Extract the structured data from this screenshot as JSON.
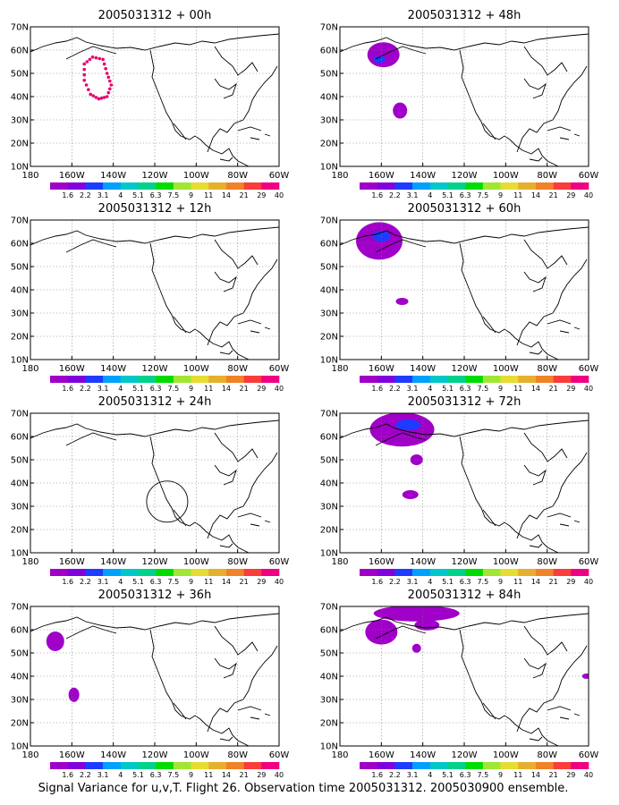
{
  "caption": "Signal Variance for u,v,T. Flight 26. Observation time 2005031312. 2005030900 ensemble.",
  "chart_data": {
    "type": "map",
    "colorbar": {
      "labels": [
        "1.6",
        "2.2",
        "3.1",
        "4",
        "5.1",
        "6.3",
        "7.5",
        "9",
        "11",
        "14",
        "21",
        "29",
        "40"
      ],
      "colors": [
        "#a000c8",
        "#8200dc",
        "#1e3cff",
        "#00a0ff",
        "#00c8c8",
        "#00d28c",
        "#00dc00",
        "#a0e632",
        "#e6dc32",
        "#e6af2d",
        "#f08228",
        "#fa3c3c",
        "#f00082"
      ]
    },
    "xticks": [
      "180",
      "160W",
      "140W",
      "120W",
      "100W",
      "80W",
      "60W"
    ],
    "yticks": [
      "10N",
      "20N",
      "30N",
      "40N",
      "50N",
      "60N",
      "70N"
    ],
    "xlim": [
      -180,
      -60
    ],
    "ylim": [
      10,
      70
    ],
    "panels": [
      {
        "title": "2005031312 + 00h"
      },
      {
        "title": "2005031312 + 48h"
      },
      {
        "title": "2005031312 + 12h"
      },
      {
        "title": "2005031312 + 60h"
      },
      {
        "title": "2005031312 + 24h"
      },
      {
        "title": "2005031312 + 72h"
      },
      {
        "title": "2005031312 + 36h"
      },
      {
        "title": "2005031312 + 84h"
      }
    ]
  }
}
